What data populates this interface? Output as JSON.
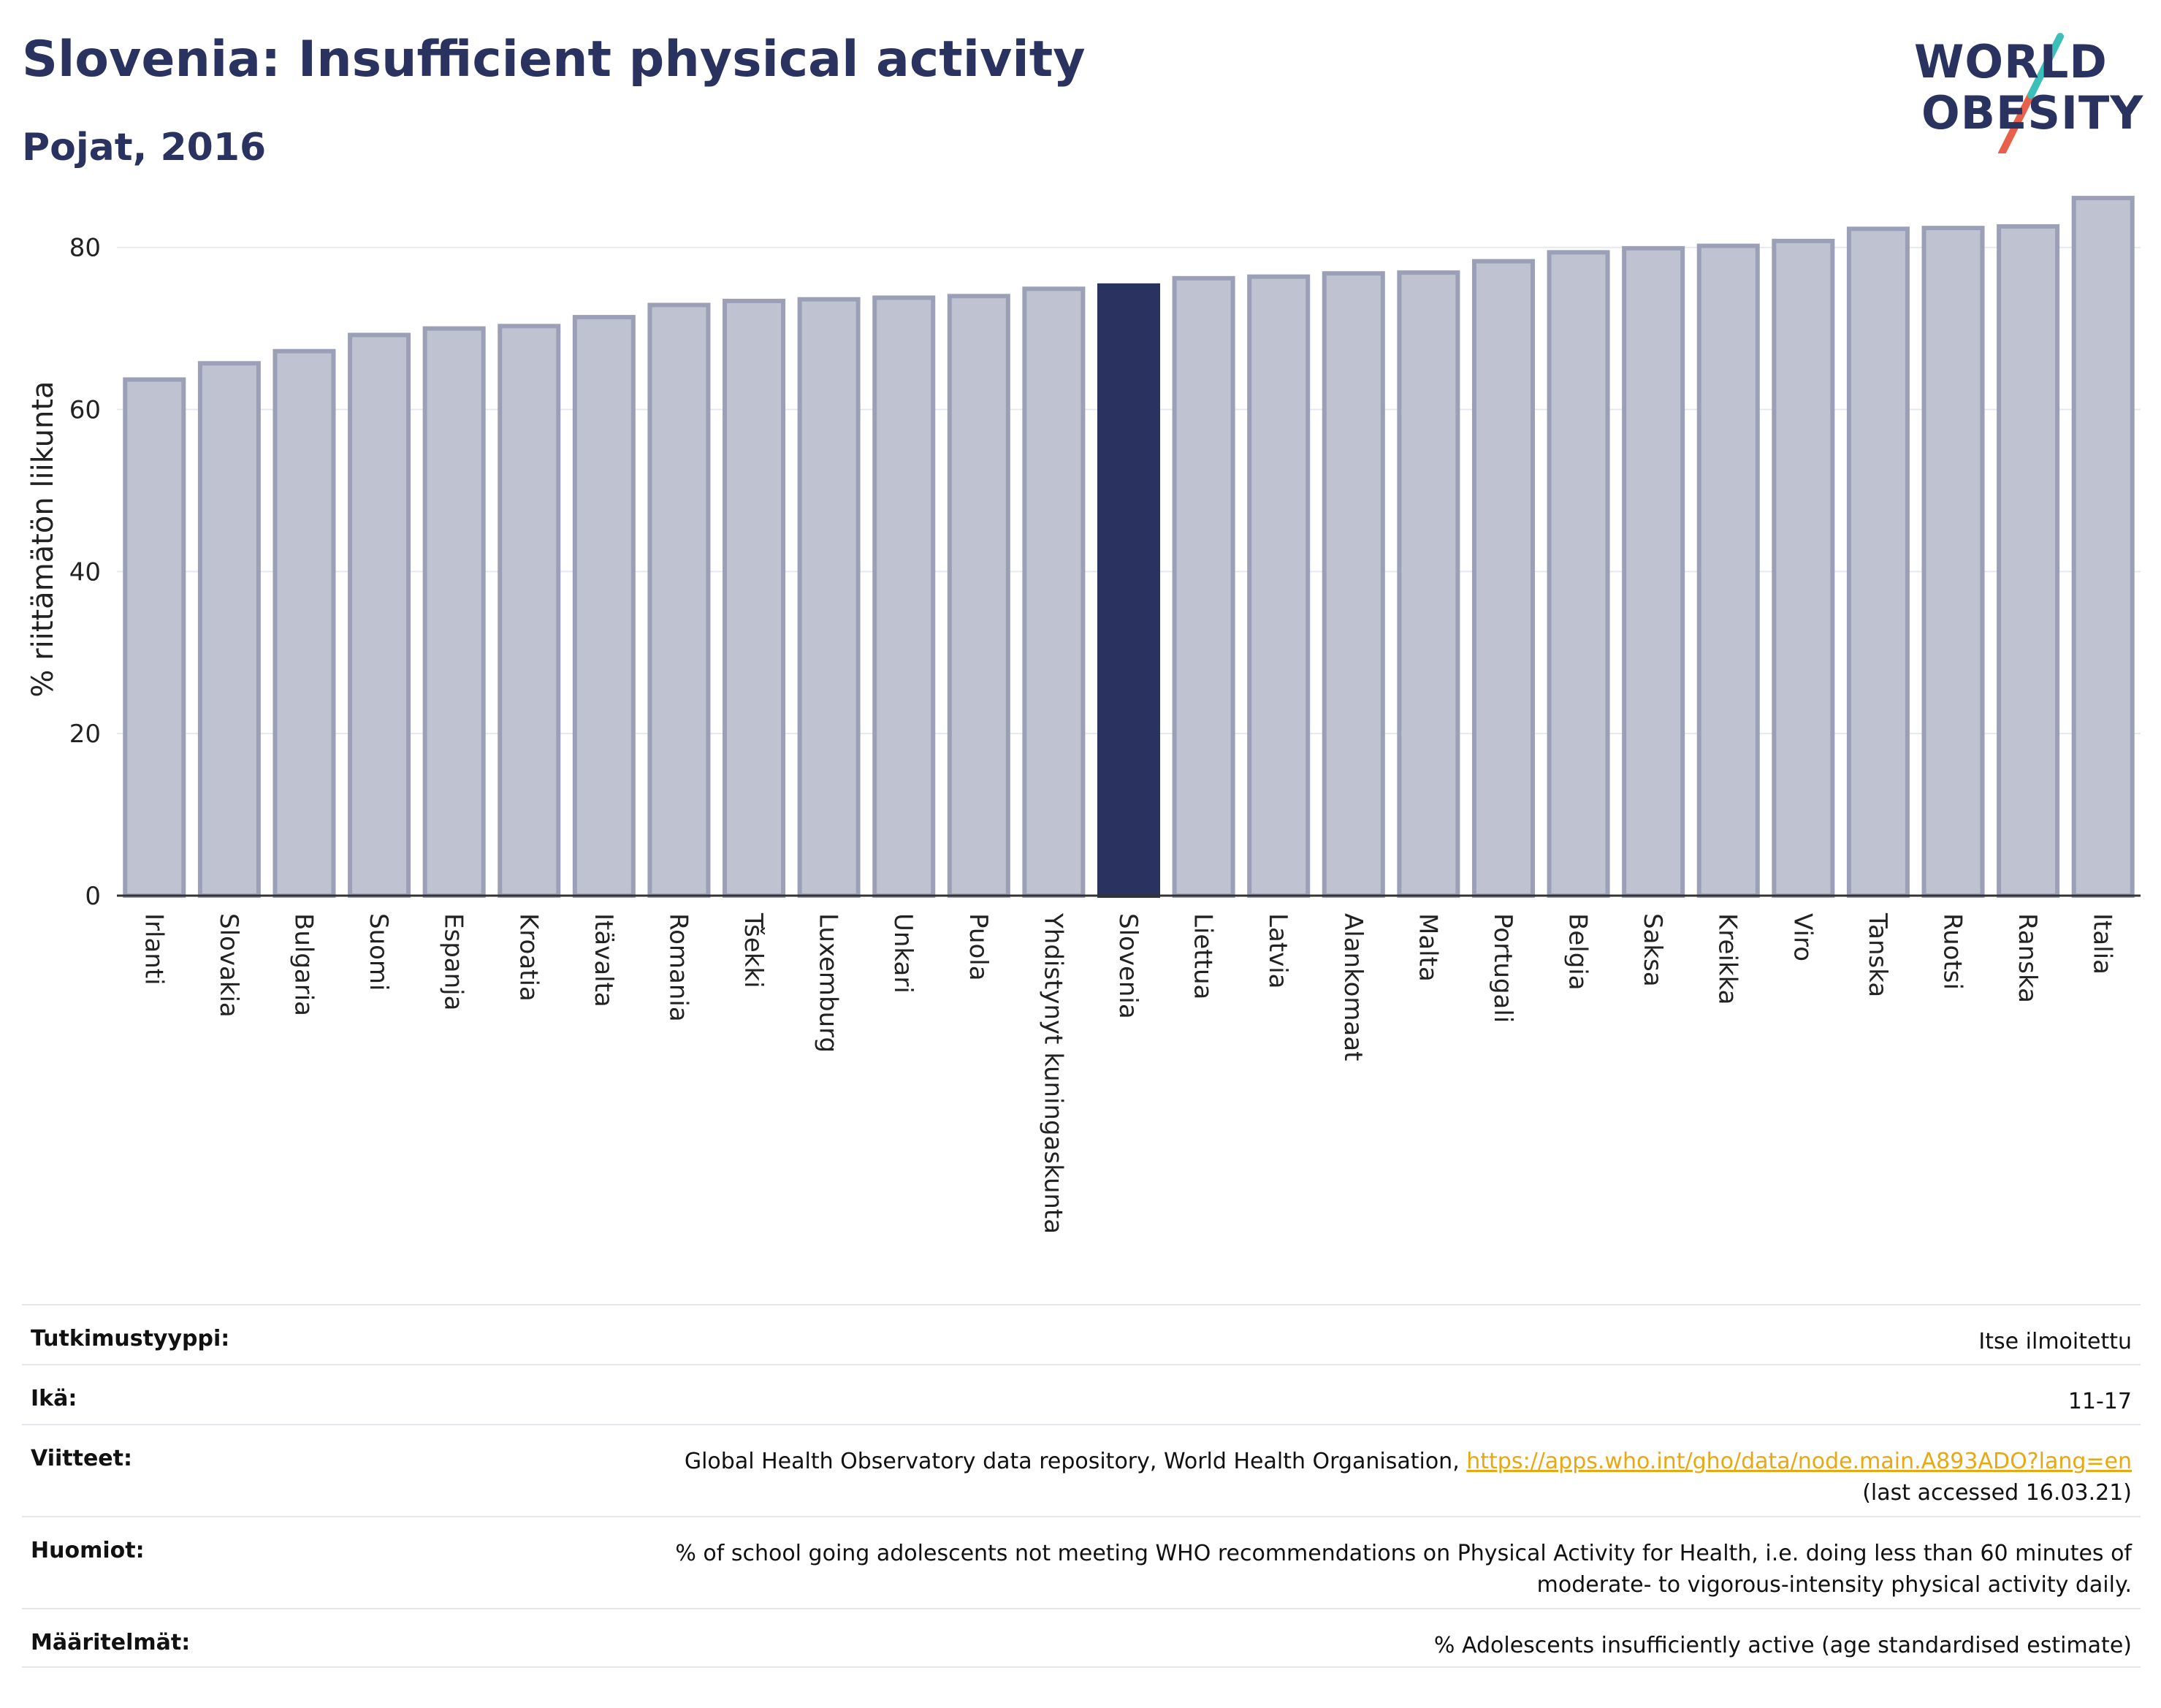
{
  "header": {
    "title": "Slovenia: Insufficient physical activity",
    "subtitle": "Pojat, 2016"
  },
  "logo": {
    "line1": "WORLD",
    "line2": "OBESITY",
    "slash_colors": [
      "#3bbfb8",
      "#e8604c"
    ]
  },
  "colors": {
    "highlight": "#2a3360",
    "bar": "#bfc2d0",
    "bar_border": "#9ba0b6",
    "grid": "#e6e8ef",
    "link": "#e8a812"
  },
  "chart_data": {
    "type": "bar",
    "ylabel": "% riittämätön liikunta",
    "ylim": [
      0,
      88
    ],
    "yticks": [
      0,
      20,
      40,
      60,
      80
    ],
    "grid": true,
    "highlight": "Slovenia",
    "categories": [
      "Irlanti",
      "Slovakia",
      "Bulgaria",
      "Suomi",
      "Espanja",
      "Kroatia",
      "Itävalta",
      "Romania",
      "Tšekki",
      "Luxemburg",
      "Unkari",
      "Puola",
      "Yhdistynyt kuningaskunta",
      "Slovenia",
      "Liettua",
      "Latvia",
      "Alankomaat",
      "Malta",
      "Portugali",
      "Belgia",
      "Saksa",
      "Kreikka",
      "Viro",
      "Tanska",
      "Ruotsi",
      "Ranska",
      "Italia"
    ],
    "values": [
      63.7,
      65.7,
      67.2,
      69.2,
      70.0,
      70.3,
      71.4,
      72.9,
      73.4,
      73.6,
      73.8,
      74.0,
      74.9,
      75.3,
      76.2,
      76.4,
      76.8,
      76.9,
      78.3,
      79.4,
      79.9,
      80.2,
      80.8,
      82.3,
      82.4,
      82.6,
      86.1
    ]
  },
  "info": [
    {
      "label": "Tutkimustyyppi:",
      "value": "Itse ilmoitettu"
    },
    {
      "label": "Ikä:",
      "value": "11-17"
    },
    {
      "label": "Viitteet:",
      "value": "Global Health Observatory data repository, World Health Organisation, ",
      "link": "https://apps.who.int/gho/data/node.main.A893ADO?lang=en",
      "value2": "(last accessed 16.03.21)"
    },
    {
      "label": "Huomiot:",
      "value": "% of school going adolescents not meeting WHO recommendations on Physical Activity for Health, i.e. doing less than 60 minutes of moderate- to vigorous-intensity physical activity daily."
    },
    {
      "label": "Määritelmät:",
      "value": "% Adolescents insufficiently active (age standardised estimate)"
    }
  ]
}
